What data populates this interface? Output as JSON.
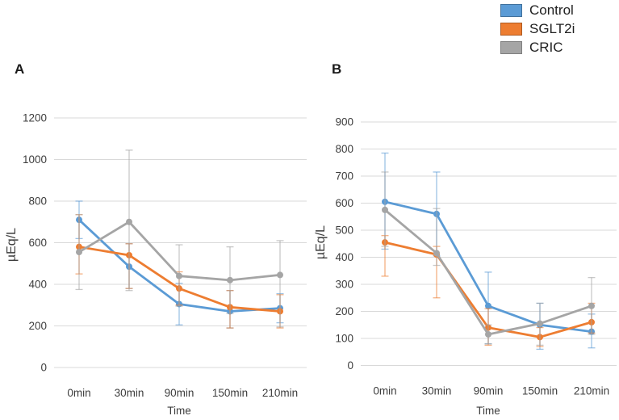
{
  "figure": {
    "xlabel": "Time",
    "ylabel": "µEq/L"
  },
  "legend": {
    "items": [
      {
        "label": "Control",
        "color": "#5B9BD5",
        "border": "#41719C"
      },
      {
        "label": "SGLT2i",
        "color": "#ED7D31",
        "border": "#AE5A21"
      },
      {
        "label": "CRIC",
        "color": "#A5A5A5",
        "border": "#7F7F7F"
      }
    ]
  },
  "chart_data": [
    {
      "type": "line",
      "panel_label": "A",
      "title": "",
      "xlabel": "Time",
      "ylabel": "µEq/L",
      "categories": [
        "0min",
        "30min",
        "90min",
        "150min",
        "210min"
      ],
      "ylim": [
        0,
        1200
      ],
      "yticks": [
        0,
        200,
        400,
        600,
        800,
        1000,
        1200
      ],
      "grid": true,
      "error_bars": true,
      "series": [
        {
          "name": "Control",
          "color": "#5B9BD5",
          "values": [
            710,
            485,
            305,
            270,
            285
          ],
          "err_low": [
            620,
            380,
            205,
            190,
            215
          ],
          "err_high": [
            800,
            595,
            405,
            370,
            355
          ]
        },
        {
          "name": "SGLT2i",
          "color": "#ED7D31",
          "values": [
            580,
            540,
            380,
            290,
            270
          ],
          "err_low": [
            450,
            380,
            300,
            190,
            190
          ],
          "err_high": [
            735,
            595,
            460,
            370,
            350
          ]
        },
        {
          "name": "CRIC",
          "color": "#A5A5A5",
          "values": [
            555,
            700,
            440,
            420,
            445
          ],
          "err_low": [
            375,
            370,
            295,
            260,
            195
          ],
          "err_high": [
            735,
            1045,
            590,
            580,
            610
          ]
        }
      ]
    },
    {
      "type": "line",
      "panel_label": "B",
      "title": "",
      "xlabel": "Time",
      "ylabel": "µEq/L",
      "categories": [
        "0min",
        "30min",
        "90min",
        "150min",
        "210min"
      ],
      "ylim": [
        0,
        900
      ],
      "yticks": [
        0,
        100,
        200,
        300,
        400,
        500,
        600,
        700,
        800,
        900
      ],
      "grid": true,
      "error_bars": true,
      "series": [
        {
          "name": "Control",
          "color": "#5B9BD5",
          "values": [
            605,
            560,
            220,
            150,
            125
          ],
          "err_low": [
            430,
            405,
            80,
            60,
            65
          ],
          "err_high": [
            785,
            715,
            345,
            230,
            190
          ]
        },
        {
          "name": "SGLT2i",
          "color": "#ED7D31",
          "values": [
            455,
            410,
            140,
            105,
            160
          ],
          "err_low": [
            330,
            250,
            75,
            70,
            120
          ],
          "err_high": [
            480,
            440,
            210,
            140,
            230
          ]
        },
        {
          "name": "CRIC",
          "color": "#A5A5A5",
          "values": [
            575,
            415,
            115,
            155,
            220
          ],
          "err_low": [
            440,
            370,
            80,
            75,
            115
          ],
          "err_high": [
            715,
            580,
            150,
            230,
            325
          ]
        }
      ]
    }
  ]
}
